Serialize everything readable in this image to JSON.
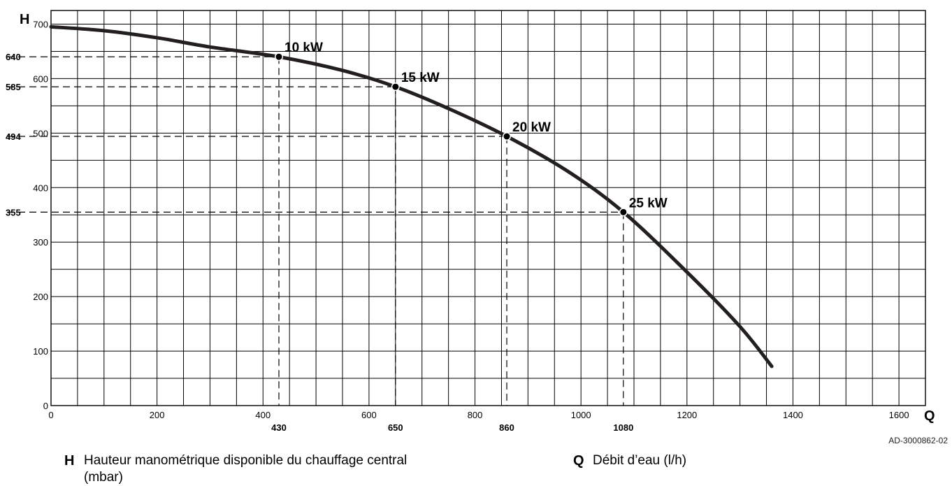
{
  "chart_data": {
    "type": "line",
    "x_axis": {
      "symbol": "Q",
      "ticks": [
        "0",
        "200",
        "400",
        "600",
        "800",
        "1000",
        "1200",
        "1400",
        "1600"
      ],
      "xlim": [
        0,
        1650
      ],
      "grid_step": 50
    },
    "y_axis": {
      "symbol": "H",
      "ticks": [
        "0",
        "100",
        "200",
        "300",
        "400",
        "500",
        "600",
        "700"
      ],
      "ylim": [
        0,
        725
      ],
      "grid_step": 50
    },
    "grid": true,
    "series": [
      {
        "x": [
          0,
          100,
          200,
          300,
          430,
          550,
          650,
          750,
          860,
          975,
          1080,
          1200,
          1300,
          1360
        ],
        "y": [
          695,
          688,
          675,
          658,
          640,
          615,
          585,
          545,
          494,
          430,
          355,
          245,
          145,
          72
        ]
      }
    ],
    "operating_points": [
      {
        "label": "10 kW",
        "q": 430,
        "h": 640,
        "q_label": "430",
        "h_label": "640"
      },
      {
        "label": "15 kW",
        "q": 650,
        "h": 585,
        "q_label": "650",
        "h_label": "585"
      },
      {
        "label": "20 kW",
        "q": 860,
        "h": 494,
        "q_label": "860",
        "h_label": "494"
      },
      {
        "label": "25 kW",
        "q": 1080,
        "h": 355,
        "q_label": "1080",
        "h_label": "355"
      }
    ],
    "reference": "AD-3000862-02"
  },
  "legend": {
    "h_key": "H",
    "h_text": "Hauteur manométrique disponible du chauffage central (mbar)",
    "q_key": "Q",
    "q_text": "Débit d’eau (l/h)"
  }
}
